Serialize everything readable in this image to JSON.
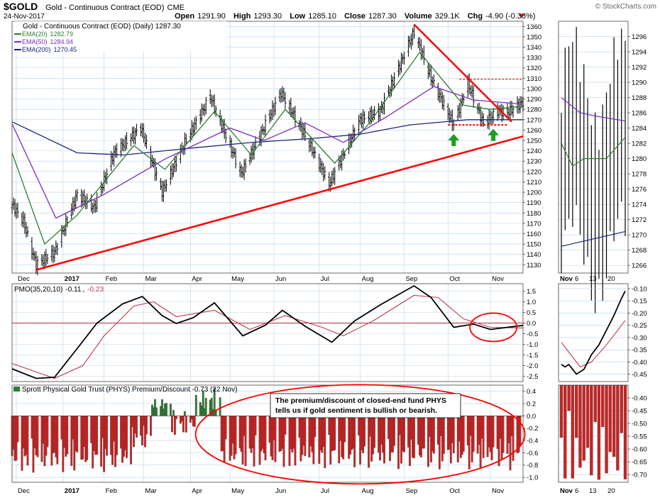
{
  "header": {
    "symbol": "$GOLD",
    "name": "Gold - Continuous Contract (EOD)",
    "exchange": "CME",
    "date": "24-Nov-2017",
    "open_label": "Open",
    "open": "1291.90",
    "high_label": "High",
    "high": "1293.30",
    "low_label": "Low",
    "low": "1285.10",
    "close_label": "Close",
    "close": "1287.30",
    "volume_label": "Volume",
    "volume": "329.1K",
    "chg_label": "Chg",
    "chg": "-4.90 (-0.38%)",
    "watermark": "© StockCharts.com"
  },
  "colors": {
    "ema20": "#2e7d32",
    "ema50": "#7b2cbf",
    "ema200": "#1a237e",
    "trend": "#ff0000",
    "pmo": "#000000",
    "pmo_signal": "#c0394b",
    "hist_pos": "#2e7d32",
    "hist_neg": "#cc2222",
    "grid": "#b9d3ea"
  },
  "chart_data": [
    {
      "type": "ohlc",
      "panel": "price",
      "title": "Gold - Continuous Contract (EOD) (Daily) 1287.30",
      "legend": [
        {
          "label": "EMA(20)",
          "value": "1282.79",
          "color": "#2e7d32"
        },
        {
          "label": "EMA(50)",
          "value": "1284.94",
          "color": "#7b2cbf"
        },
        {
          "label": "EMA(200)",
          "value": "1270.45",
          "color": "#1a237e"
        }
      ],
      "y_ticks": [
        1130,
        1140,
        1150,
        1160,
        1170,
        1180,
        1190,
        1200,
        1210,
        1220,
        1230,
        1240,
        1250,
        1260,
        1270,
        1280,
        1290,
        1300,
        1310,
        1320,
        1330,
        1340,
        1350,
        1360
      ],
      "ylim": [
        1122,
        1365
      ],
      "x_range": [
        "2016-11-28",
        "2017-11-24"
      ],
      "month_labels": [
        {
          "label": "Dec",
          "date": "2016-12-01"
        },
        {
          "label": "2017",
          "date": "2017-01-03"
        },
        {
          "label": "Feb",
          "date": "2017-02-01"
        },
        {
          "label": "Mar",
          "date": "2017-03-01"
        },
        {
          "label": "Apr",
          "date": "2017-04-03"
        },
        {
          "label": "May",
          "date": "2017-05-01"
        },
        {
          "label": "Jun",
          "date": "2017-06-01"
        },
        {
          "label": "Jul",
          "date": "2017-07-03"
        },
        {
          "label": "Aug",
          "date": "2017-08-01"
        },
        {
          "label": "Sep",
          "date": "2017-09-01"
        },
        {
          "label": "Oct",
          "date": "2017-10-02"
        },
        {
          "label": "Nov",
          "date": "2017-11-01"
        }
      ],
      "close_path": [
        {
          "date": "2016-11-28",
          "y": 1188
        },
        {
          "date": "2016-12-06",
          "y": 1172
        },
        {
          "date": "2016-12-15",
          "y": 1130
        },
        {
          "date": "2016-12-28",
          "y": 1142
        },
        {
          "date": "2017-01-13",
          "y": 1198
        },
        {
          "date": "2017-01-25",
          "y": 1185
        },
        {
          "date": "2017-02-08",
          "y": 1238
        },
        {
          "date": "2017-02-27",
          "y": 1262
        },
        {
          "date": "2017-03-14",
          "y": 1200
        },
        {
          "date": "2017-03-30",
          "y": 1248
        },
        {
          "date": "2017-04-17",
          "y": 1292
        },
        {
          "date": "2017-05-09",
          "y": 1218
        },
        {
          "date": "2017-06-06",
          "y": 1296
        },
        {
          "date": "2017-06-23",
          "y": 1255
        },
        {
          "date": "2017-07-10",
          "y": 1208
        },
        {
          "date": "2017-08-01",
          "y": 1270
        },
        {
          "date": "2017-08-15",
          "y": 1278
        },
        {
          "date": "2017-09-08",
          "y": 1355
        },
        {
          "date": "2017-09-20",
          "y": 1310
        },
        {
          "date": "2017-10-06",
          "y": 1265
        },
        {
          "date": "2017-10-16",
          "y": 1305
        },
        {
          "date": "2017-10-27",
          "y": 1266
        },
        {
          "date": "2017-11-06",
          "y": 1278
        },
        {
          "date": "2017-11-13",
          "y": 1277
        },
        {
          "date": "2017-11-24",
          "y": 1287
        }
      ],
      "ema20": [
        {
          "date": "2016-11-28",
          "y": 1238
        },
        {
          "date": "2016-12-21",
          "y": 1150
        },
        {
          "date": "2017-01-13",
          "y": 1178
        },
        {
          "date": "2017-02-22",
          "y": 1245
        },
        {
          "date": "2017-03-16",
          "y": 1222
        },
        {
          "date": "2017-04-20",
          "y": 1278
        },
        {
          "date": "2017-05-16",
          "y": 1236
        },
        {
          "date": "2017-06-09",
          "y": 1280
        },
        {
          "date": "2017-07-14",
          "y": 1228
        },
        {
          "date": "2017-08-07",
          "y": 1266
        },
        {
          "date": "2017-09-12",
          "y": 1335
        },
        {
          "date": "2017-10-13",
          "y": 1284
        },
        {
          "date": "2017-11-01",
          "y": 1280
        },
        {
          "date": "2017-11-24",
          "y": 1283
        }
      ],
      "ema50": [
        {
          "date": "2016-11-28",
          "y": 1266
        },
        {
          "date": "2016-12-29",
          "y": 1175
        },
        {
          "date": "2017-02-01",
          "y": 1198
        },
        {
          "date": "2017-03-16",
          "y": 1232
        },
        {
          "date": "2017-05-01",
          "y": 1262
        },
        {
          "date": "2017-05-25",
          "y": 1250
        },
        {
          "date": "2017-06-23",
          "y": 1267
        },
        {
          "date": "2017-07-20",
          "y": 1248
        },
        {
          "date": "2017-08-21",
          "y": 1274
        },
        {
          "date": "2017-09-22",
          "y": 1302
        },
        {
          "date": "2017-10-20",
          "y": 1289
        },
        {
          "date": "2017-11-24",
          "y": 1285
        }
      ],
      "ema200": [
        {
          "date": "2016-11-28",
          "y": 1268
        },
        {
          "date": "2017-01-13",
          "y": 1238
        },
        {
          "date": "2017-02-15",
          "y": 1236
        },
        {
          "date": "2017-03-30",
          "y": 1242
        },
        {
          "date": "2017-05-16",
          "y": 1248
        },
        {
          "date": "2017-06-29",
          "y": 1252
        },
        {
          "date": "2017-08-01",
          "y": 1256
        },
        {
          "date": "2017-09-05",
          "y": 1265
        },
        {
          "date": "2017-10-16",
          "y": 1270
        },
        {
          "date": "2017-11-24",
          "y": 1270
        }
      ],
      "annotations": {
        "rising_trendline": [
          {
            "date": "2016-12-15",
            "y": 1125
          },
          {
            "date": "2017-11-24",
            "y": 1254
          }
        ],
        "falling_trendline": [
          {
            "date": "2017-09-08",
            "y": 1362
          },
          {
            "date": "2017-11-16",
            "y": 1268
          }
        ],
        "resistance_line": {
          "y": 1309,
          "from": "2017-10-10",
          "to": "2017-11-24"
        },
        "support_line": {
          "y": 1265,
          "from": "2017-10-02",
          "to": "2017-11-13"
        },
        "up_arrows": [
          {
            "date": "2017-10-06",
            "y": 1250
          },
          {
            "date": "2017-11-03",
            "y": 1255
          }
        ]
      }
    },
    {
      "type": "ohlc",
      "panel": "price_zoom",
      "y_ticks": [
        1266,
        1268,
        1270,
        1272,
        1274,
        1276,
        1278,
        1280,
        1282,
        1284,
        1286,
        1288,
        1290,
        1292,
        1294,
        1296
      ],
      "ylim": [
        1265,
        1298
      ],
      "x_labels": [
        "Nov",
        "6",
        "13",
        "20"
      ],
      "ema20_end": 1282.79,
      "ema50_end": 1284.94,
      "ema200_end": 1270.45
    },
    {
      "type": "line",
      "panel": "pmo",
      "title": "PMO(35,20,10)",
      "values_label": "-0.11",
      "signal_label": "-0.23",
      "y_ticks": [
        -2.5,
        -2.0,
        -1.5,
        -1.0,
        -0.5,
        0.0,
        0.5,
        1.0,
        1.5
      ],
      "ylim": [
        -2.75,
        1.85
      ],
      "series": [
        {
          "name": "PMO",
          "values": [
            {
              "date": "2016-11-28",
              "y": -2.15
            },
            {
              "date": "2016-12-15",
              "y": -2.6
            },
            {
              "date": "2016-12-28",
              "y": -2.55
            },
            {
              "date": "2017-01-13",
              "y": -1.2
            },
            {
              "date": "2017-01-27",
              "y": 0.0
            },
            {
              "date": "2017-02-14",
              "y": 0.9
            },
            {
              "date": "2017-02-28",
              "y": 1.25
            },
            {
              "date": "2017-03-14",
              "y": 0.35
            },
            {
              "date": "2017-03-24",
              "y": -0.02
            },
            {
              "date": "2017-04-05",
              "y": 0.25
            },
            {
              "date": "2017-04-20",
              "y": 0.95
            },
            {
              "date": "2017-05-10",
              "y": -0.6
            },
            {
              "date": "2017-05-26",
              "y": -0.1
            },
            {
              "date": "2017-06-07",
              "y": 0.6
            },
            {
              "date": "2017-06-23",
              "y": -0.15
            },
            {
              "date": "2017-07-12",
              "y": -0.9
            },
            {
              "date": "2017-07-28",
              "y": 0.1
            },
            {
              "date": "2017-08-15",
              "y": 0.85
            },
            {
              "date": "2017-09-08",
              "y": 1.75
            },
            {
              "date": "2017-09-20",
              "y": 1.2
            },
            {
              "date": "2017-10-06",
              "y": -0.2
            },
            {
              "date": "2017-10-20",
              "y": -0.05
            },
            {
              "date": "2017-11-01",
              "y": -0.3
            },
            {
              "date": "2017-11-24",
              "y": -0.11
            }
          ]
        },
        {
          "name": "Signal",
          "values": [
            {
              "date": "2016-11-28",
              "y": -1.9
            },
            {
              "date": "2016-12-28",
              "y": -2.6
            },
            {
              "date": "2017-01-17",
              "y": -2.0
            },
            {
              "date": "2017-02-01",
              "y": -0.6
            },
            {
              "date": "2017-02-22",
              "y": 0.8
            },
            {
              "date": "2017-03-08",
              "y": 1.0
            },
            {
              "date": "2017-03-24",
              "y": 0.3
            },
            {
              "date": "2017-04-20",
              "y": 0.6
            },
            {
              "date": "2017-05-15",
              "y": -0.3
            },
            {
              "date": "2017-06-09",
              "y": 0.35
            },
            {
              "date": "2017-07-05",
              "y": -0.2
            },
            {
              "date": "2017-07-20",
              "y": -0.6
            },
            {
              "date": "2017-08-10",
              "y": 0.1
            },
            {
              "date": "2017-09-08",
              "y": 1.3
            },
            {
              "date": "2017-09-25",
              "y": 1.2
            },
            {
              "date": "2017-10-13",
              "y": 0.2
            },
            {
              "date": "2017-11-01",
              "y": -0.2
            },
            {
              "date": "2017-11-24",
              "y": -0.23
            }
          ]
        }
      ]
    },
    {
      "type": "line",
      "panel": "pmo_zoom",
      "y_ticks": [
        -0.45,
        -0.4,
        -0.35,
        -0.3,
        -0.25,
        -0.2,
        -0.15,
        -0.1
      ],
      "ylim": [
        -0.48,
        -0.08
      ]
    },
    {
      "type": "bar",
      "panel": "premium_discount",
      "title": "Sprott Physical Gold Trust (PHYS) Premium/Discount -0.73 (22 Nov)",
      "y_ticks": [
        -1.0,
        -0.8,
        -0.6,
        -0.4,
        -0.2,
        0.0,
        0.2,
        0.4
      ],
      "ylim": [
        -1.08,
        0.5
      ],
      "annotation_text": "The premium/discount of closed-end fund PHYS tells us if gold sentiment is bullish or bearish.",
      "segments": [
        {
          "from": "2016-11-28",
          "to": "2017-02-20",
          "lo": -0.95,
          "hi": -0.35
        },
        {
          "from": "2017-02-21",
          "to": "2017-03-06",
          "lo": -0.55,
          "hi": -0.15
        },
        {
          "from": "2017-03-07",
          "to": "2017-03-20",
          "lo": 0.05,
          "hi": 0.32
        },
        {
          "from": "2017-03-21",
          "to": "2017-04-06",
          "lo": -0.35,
          "hi": 0.1
        },
        {
          "from": "2017-04-07",
          "to": "2017-04-24",
          "lo": 0.05,
          "hi": 0.45
        },
        {
          "from": "2017-04-25",
          "to": "2017-11-22",
          "lo": -0.9,
          "hi": -0.3
        }
      ]
    },
    {
      "type": "bar",
      "panel": "premium_zoom",
      "y_ticks": [
        -0.7,
        -0.65,
        -0.6,
        -0.55,
        -0.5,
        -0.45,
        -0.4
      ],
      "ylim": [
        -0.73,
        -0.35
      ],
      "x_labels": [
        "Nov",
        "6",
        "13",
        "20"
      ]
    }
  ]
}
